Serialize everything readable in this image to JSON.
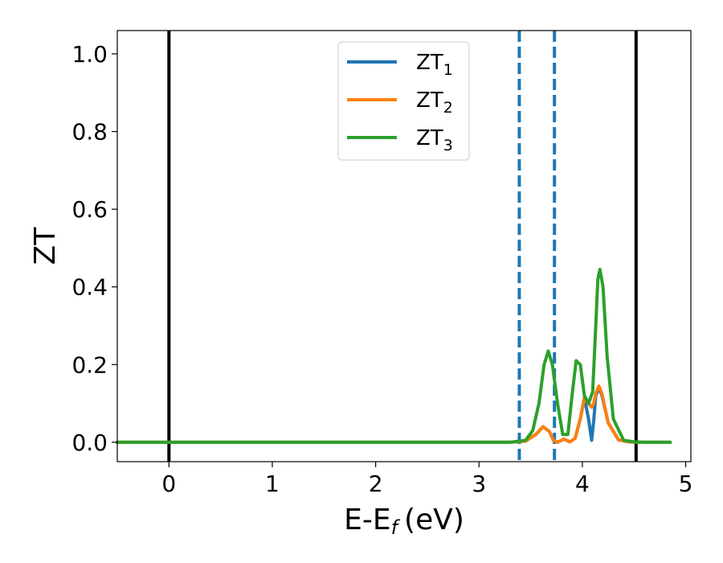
{
  "chart_data": {
    "type": "line",
    "title": "",
    "xlabel": "E-E",
    "xlabel_sub": "f",
    "xlabel_unit": "(eV)",
    "ylabel": "ZT",
    "xlim": [
      -0.5,
      5.05
    ],
    "ylim": [
      -0.05,
      1.06
    ],
    "xticks": [
      0,
      1,
      2,
      3,
      4,
      5
    ],
    "yticks": [
      0.0,
      0.2,
      0.4,
      0.6,
      0.8,
      1.0
    ],
    "xtick_labels": [
      "0",
      "1",
      "2",
      "3",
      "4",
      "5"
    ],
    "ytick_labels": [
      "0.0",
      "0.2",
      "0.4",
      "0.6",
      "0.8",
      "1.0"
    ],
    "grid": false,
    "legend_position": "top-center",
    "vertical_lines": [
      {
        "x": 0.0,
        "style": "solid",
        "color": "#000000"
      },
      {
        "x": 4.52,
        "style": "solid",
        "color": "#000000"
      },
      {
        "x": 3.39,
        "style": "dashed",
        "color": "#1f77b4"
      },
      {
        "x": 3.73,
        "style": "dashed",
        "color": "#1f77b4"
      }
    ],
    "series": [
      {
        "name": "ZT",
        "name_sub": "1",
        "color": "#1f77b4",
        "x": [
          -0.5,
          3.3,
          3.45,
          3.55,
          3.62,
          3.68,
          3.72,
          3.76,
          3.82,
          3.88,
          3.93,
          3.98,
          4.02,
          4.06,
          4.09,
          4.11,
          4.13,
          4.16,
          4.19,
          4.25,
          4.35,
          4.45,
          4.55,
          4.85
        ],
        "y": [
          0.0,
          0.0,
          0.003,
          0.02,
          0.04,
          0.028,
          0.005,
          0.0,
          0.008,
          0.001,
          0.01,
          0.06,
          0.115,
          0.06,
          0.005,
          0.055,
          0.12,
          0.14,
          0.12,
          0.05,
          0.006,
          0.001,
          0.0,
          0.0
        ]
      },
      {
        "name": "ZT",
        "name_sub": "2",
        "color": "#ff7f0e",
        "x": [
          -0.5,
          3.3,
          3.45,
          3.55,
          3.62,
          3.68,
          3.72,
          3.76,
          3.82,
          3.88,
          3.93,
          3.98,
          4.02,
          4.06,
          4.09,
          4.11,
          4.13,
          4.16,
          4.19,
          4.25,
          4.35,
          4.45,
          4.55,
          4.85
        ],
        "y": [
          0.0,
          0.0,
          0.003,
          0.02,
          0.04,
          0.028,
          0.005,
          0.0,
          0.008,
          0.001,
          0.01,
          0.06,
          0.115,
          0.1,
          0.09,
          0.1,
          0.125,
          0.145,
          0.125,
          0.05,
          0.006,
          0.001,
          0.0,
          0.0
        ]
      },
      {
        "name": "ZT",
        "name_sub": "3",
        "color": "#2ca02c",
        "x": [
          -0.5,
          3.3,
          3.45,
          3.52,
          3.58,
          3.63,
          3.67,
          3.71,
          3.76,
          3.81,
          3.86,
          3.9,
          3.94,
          3.98,
          4.02,
          4.06,
          4.1,
          4.13,
          4.15,
          4.17,
          4.2,
          4.24,
          4.3,
          4.4,
          4.5,
          4.6,
          4.85
        ],
        "y": [
          0.0,
          0.0,
          0.005,
          0.03,
          0.1,
          0.2,
          0.235,
          0.2,
          0.1,
          0.02,
          0.02,
          0.12,
          0.21,
          0.2,
          0.12,
          0.1,
          0.13,
          0.3,
          0.42,
          0.445,
          0.4,
          0.22,
          0.06,
          0.005,
          0.001,
          0.0,
          0.0
        ]
      }
    ]
  }
}
